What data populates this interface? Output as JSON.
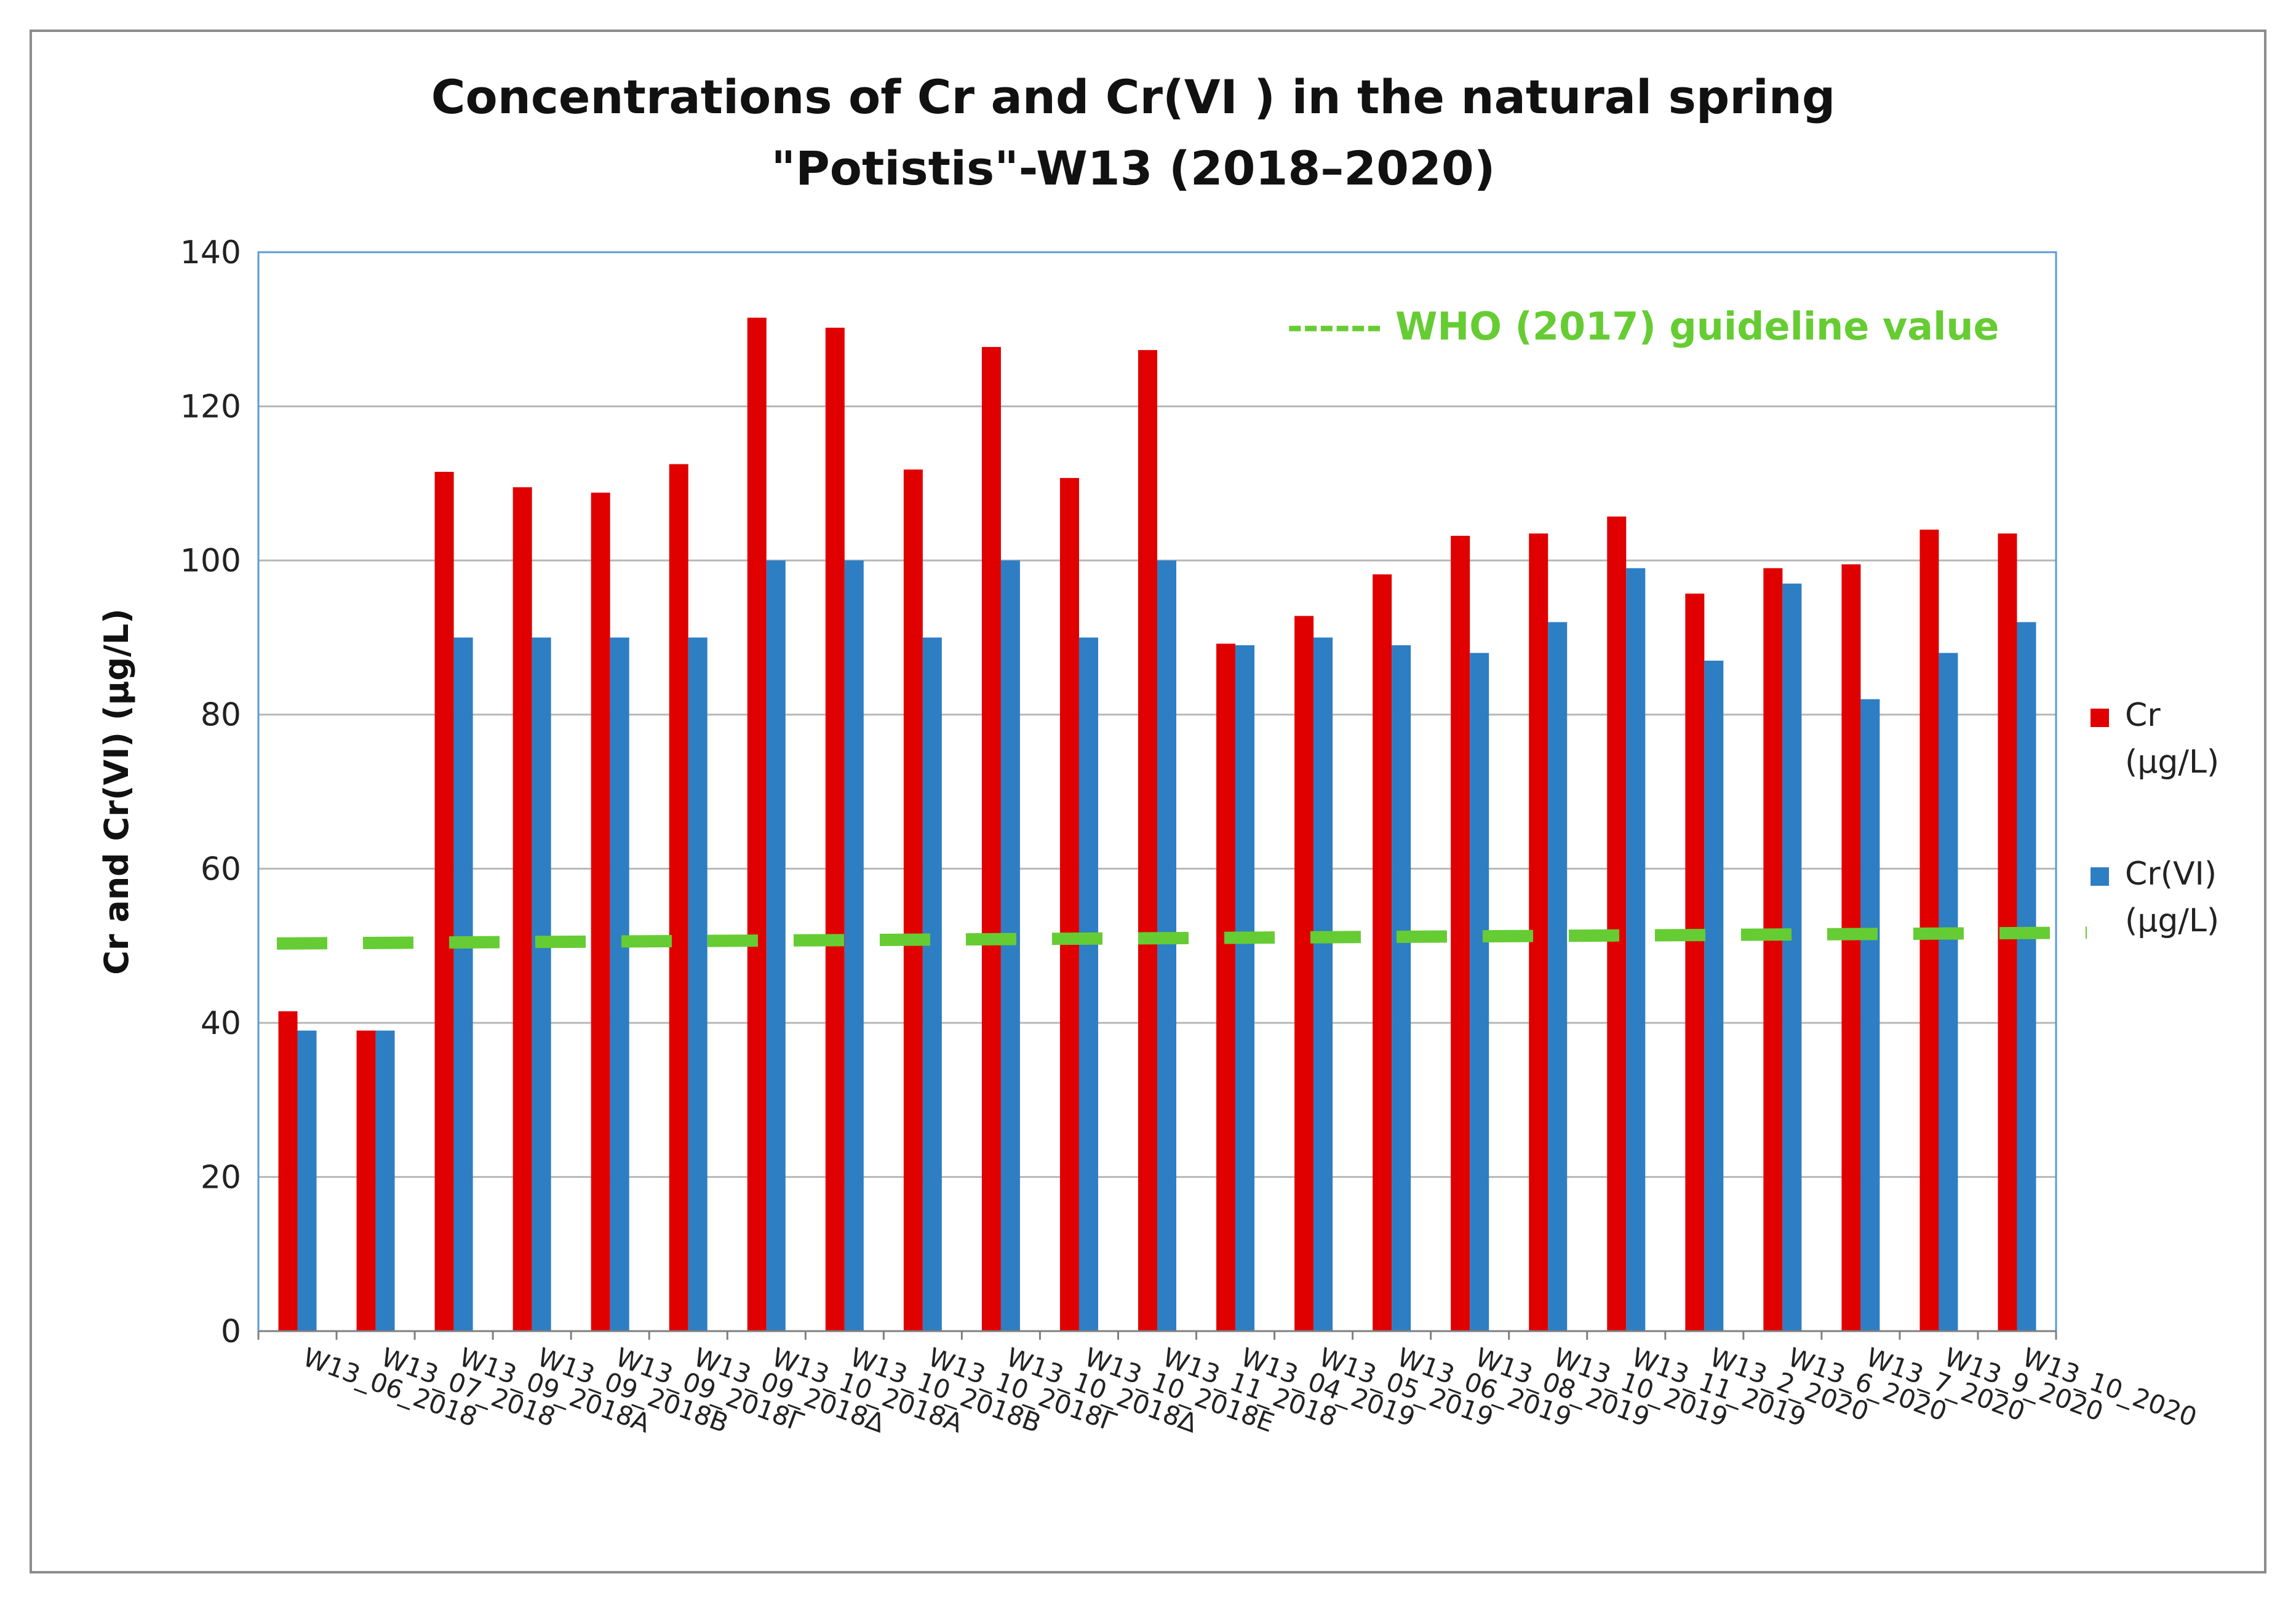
{
  "chart_data": {
    "type": "bar",
    "title_lines": [
      "Concentrations of Cr and Cr(VI ) in the natural spring",
      "\"Potistis\"-W13 (2018–2020)"
    ],
    "ylabel": "Cr  and Cr(VI) (µg/L)",
    "xlabel": "",
    "ylim": [
      0,
      140
    ],
    "yticks": [
      0,
      20,
      40,
      60,
      80,
      100,
      120,
      140
    ],
    "grid": true,
    "legend_position": "right",
    "categories": [
      "W13_06_2018",
      "W13_07_2018",
      "W13_09_2018A",
      "W13_09_2018B",
      "W13_09_2018Γ",
      "W13_09_2018Δ",
      "W13_10_2018A",
      "W13_10_2018B",
      "W13_10_2018Γ",
      "W13_10_2018Δ",
      "W13_10_2018E",
      "W13_11_2018",
      "W13_04_2019",
      "W13_05_2019",
      "W13_06_2019",
      "W13_08_2019",
      "W13_10_2019",
      "W13_11_2019",
      "W13_2_2020",
      "W13_6_2020",
      "W13_7_2020",
      "W13_9_2020",
      "W13_10_2020"
    ],
    "series": [
      {
        "name": "Cr\n(µg/L)",
        "color": "#e00000",
        "values": [
          41.5,
          39,
          111.5,
          109.5,
          108.8,
          112.5,
          131.5,
          130.2,
          111.8,
          127.7,
          110.7,
          127.3,
          89.2,
          92.8,
          98.2,
          103.2,
          103.5,
          105.7,
          95.7,
          99,
          99.5,
          104,
          103.5
        ]
      },
      {
        "name": "Cr(VI)\n(µg/L)",
        "color": "#2e7ec4",
        "values": [
          39,
          39,
          90,
          90,
          90,
          90,
          100,
          100,
          90,
          100,
          90,
          100,
          89,
          90,
          89,
          88,
          92,
          99,
          87,
          97,
          82,
          88,
          92
        ]
      }
    ],
    "reference_line": {
      "label": "------ WHO (2017) guideline value",
      "value_start": 50.3,
      "value_end": 51.7,
      "color": "#66cc33"
    }
  }
}
